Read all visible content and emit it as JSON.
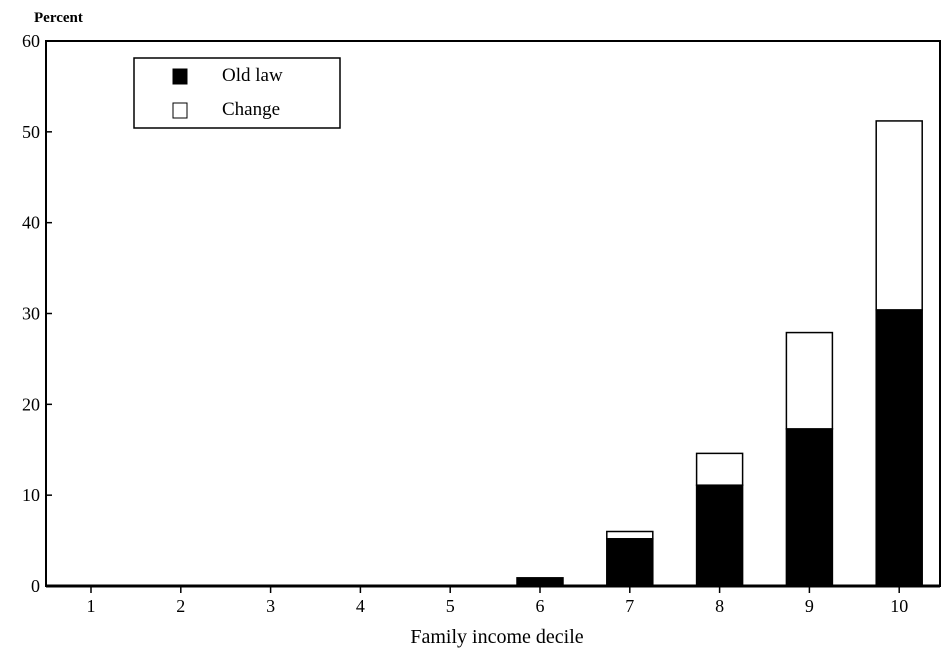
{
  "chart_data": {
    "type": "bar",
    "stacked": true,
    "ylabel": "Percent",
    "xlabel": "Family income decile",
    "categories": [
      "1",
      "2",
      "3",
      "4",
      "5",
      "6",
      "7",
      "8",
      "9",
      "10"
    ],
    "yticks": [
      "0",
      "10",
      "20",
      "30",
      "40",
      "50",
      "60"
    ],
    "ylim": [
      0,
      60
    ],
    "series": [
      {
        "name": "Old law",
        "color": "#000000",
        "values": [
          0,
          0,
          0,
          0,
          0,
          0.9,
          5.2,
          11.1,
          17.3,
          30.4
        ]
      },
      {
        "name": "Change",
        "color": "#ffffff",
        "values": [
          0,
          0,
          0,
          0,
          0,
          0,
          0.8,
          3.5,
          10.6,
          20.8
        ]
      }
    ],
    "legend": {
      "position": "top-left",
      "entries": [
        "Old law",
        "Change"
      ]
    },
    "grid": false
  }
}
